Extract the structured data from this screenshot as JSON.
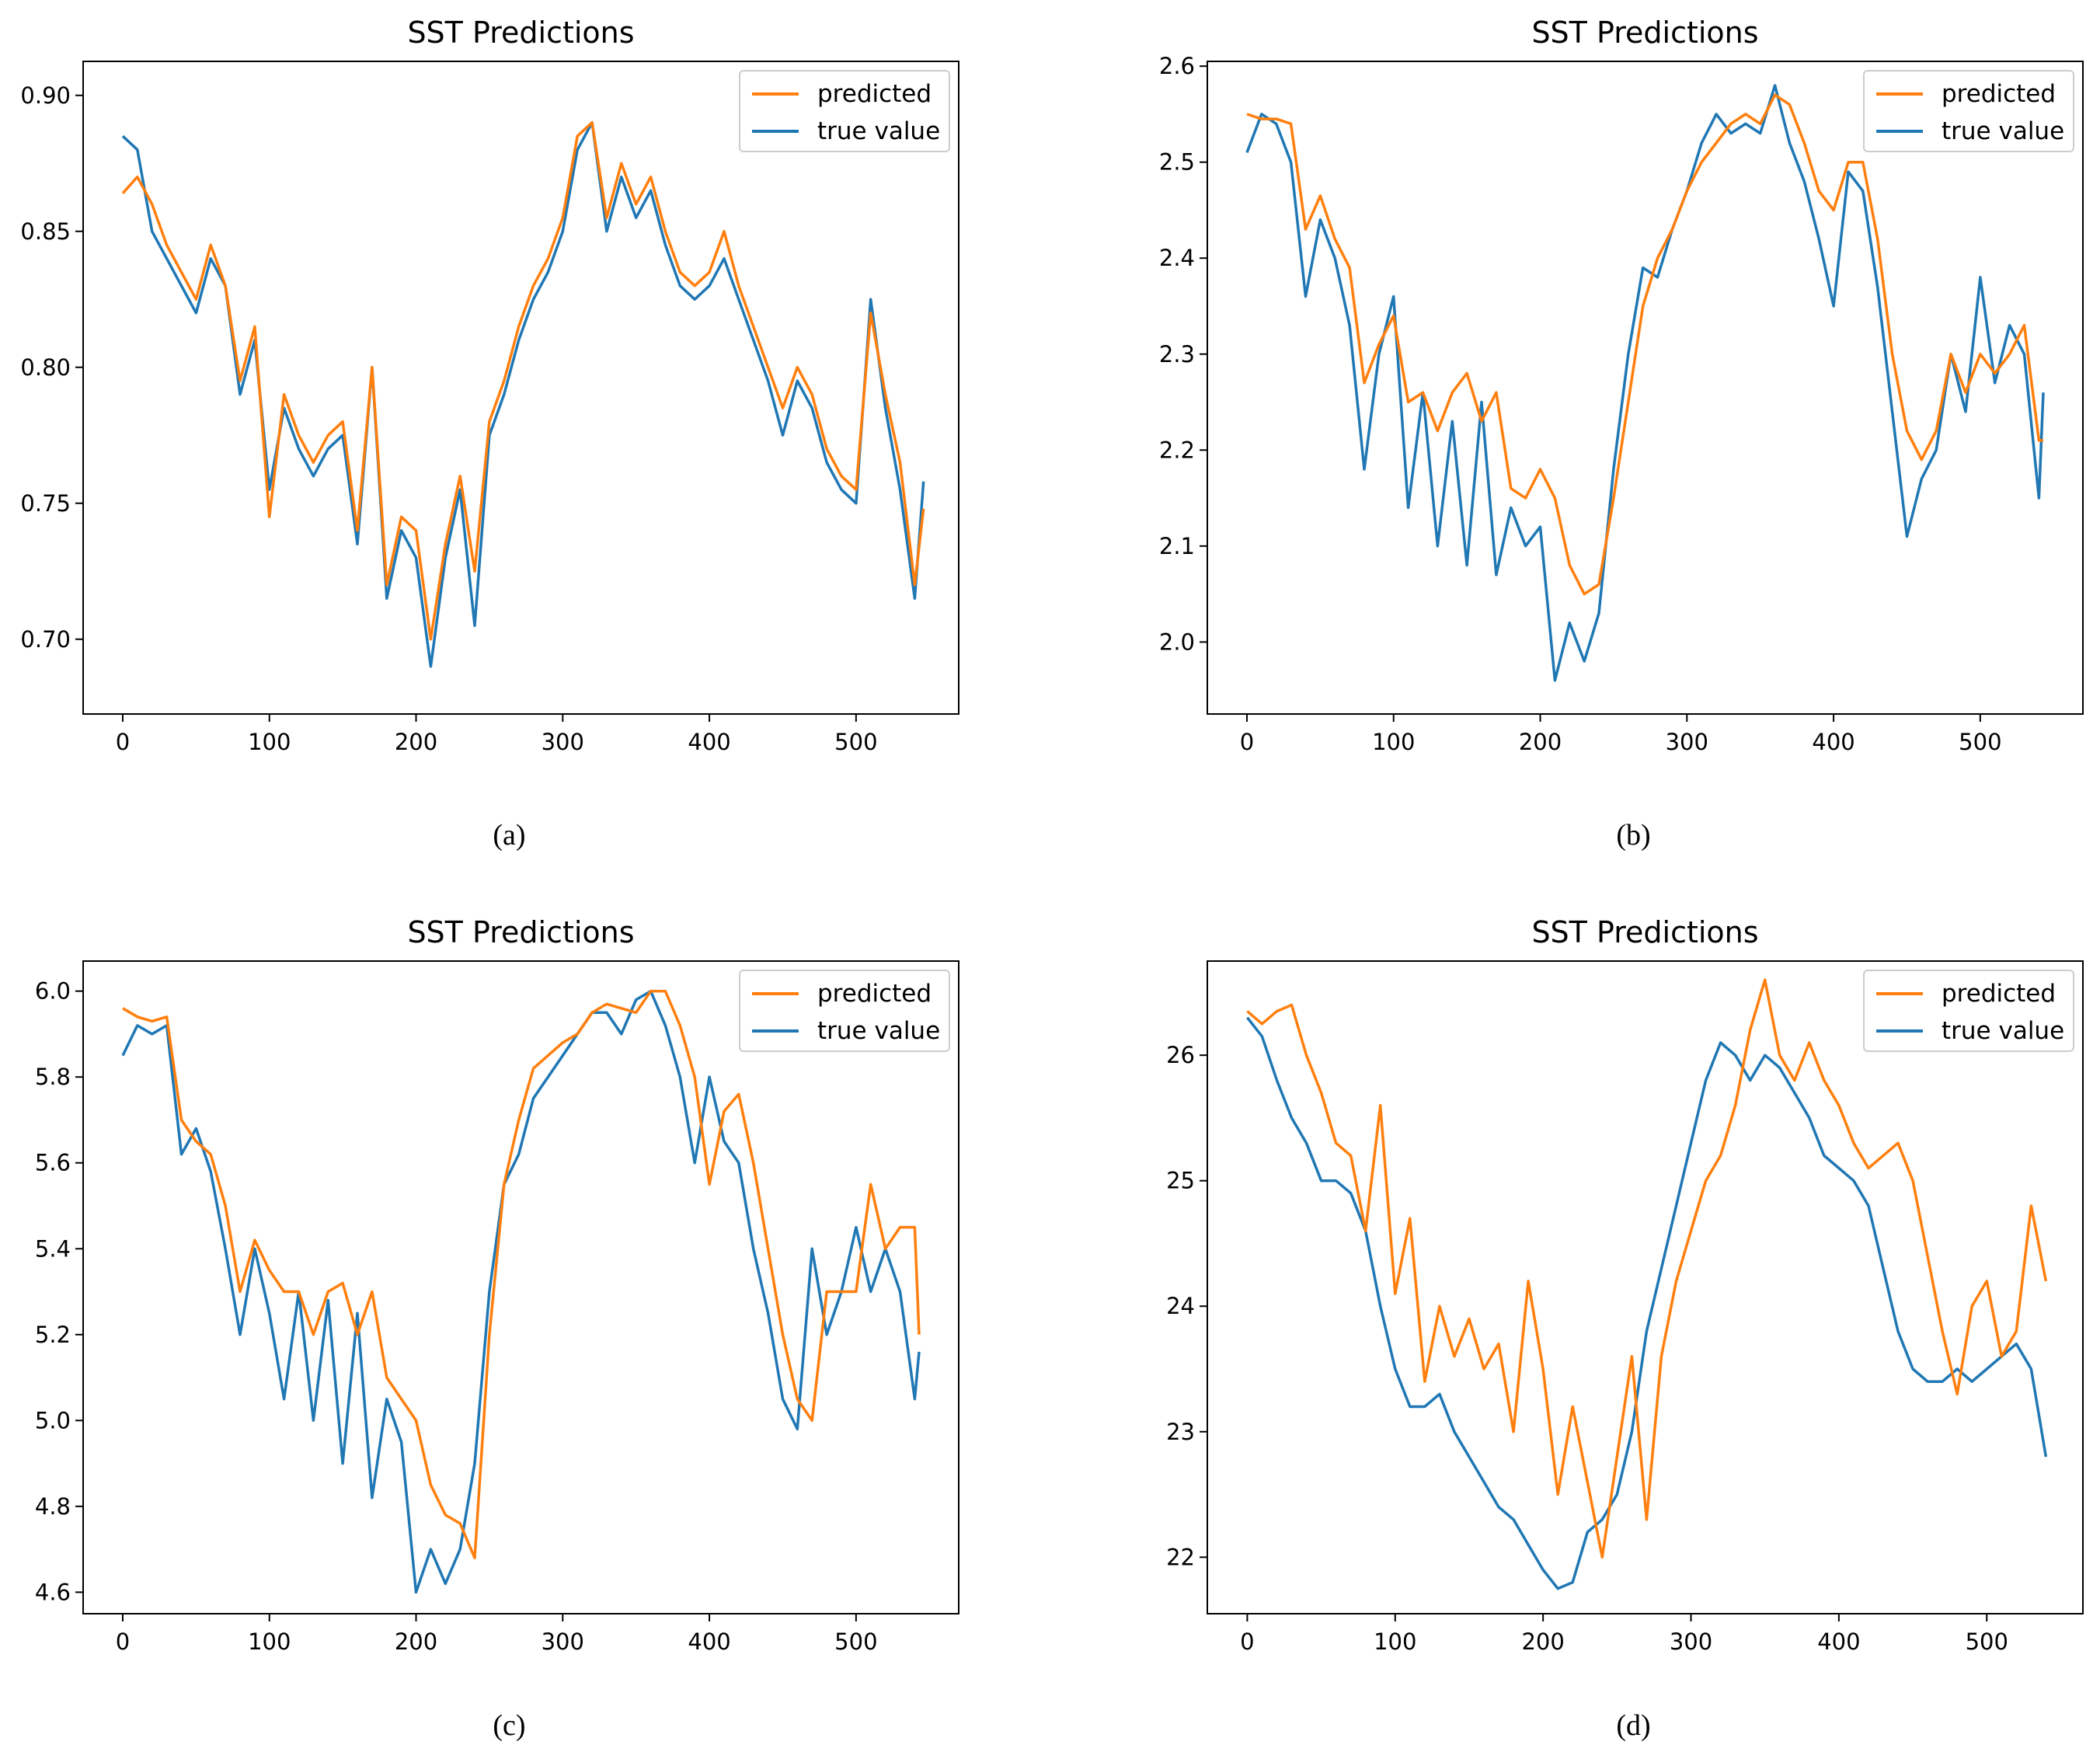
{
  "chart_data": [
    {
      "type": "line",
      "title": "SST Predictions",
      "caption": "(a)",
      "xlabel": "",
      "ylabel": "",
      "xlim": [
        -27,
        570
      ],
      "ylim": [
        0.6725,
        0.9125
      ],
      "xticks": [
        0,
        100,
        200,
        300,
        400,
        500
      ],
      "xtick_labels": [
        "0",
        "100",
        "200",
        "300",
        "400",
        "500"
      ],
      "yticks": [
        0.7,
        0.75,
        0.8,
        0.85,
        0.9
      ],
      "ytick_labels": [
        "0.70",
        "0.75",
        "0.80",
        "0.85",
        "0.90"
      ],
      "legend": [
        "predicted",
        "true value"
      ],
      "legend_loc": "top-right",
      "series": [
        {
          "name": "predicted",
          "color": "#ff7f0e",
          "x": [
            0,
            10,
            20,
            30,
            40,
            50,
            60,
            70,
            80,
            90,
            100,
            110,
            120,
            130,
            140,
            150,
            160,
            170,
            180,
            190,
            200,
            210,
            220,
            230,
            240,
            250,
            260,
            270,
            280,
            290,
            300,
            310,
            320,
            330,
            340,
            350,
            360,
            370,
            380,
            390,
            400,
            410,
            420,
            430,
            440,
            450,
            460,
            470,
            480,
            490,
            500,
            510,
            520,
            530,
            540,
            546
          ],
          "values": [
            0.864,
            0.87,
            0.86,
            0.845,
            0.835,
            0.825,
            0.845,
            0.83,
            0.795,
            0.815,
            0.745,
            0.79,
            0.775,
            0.765,
            0.775,
            0.78,
            0.74,
            0.8,
            0.72,
            0.745,
            0.74,
            0.7,
            0.735,
            0.76,
            0.725,
            0.78,
            0.795,
            0.815,
            0.83,
            0.84,
            0.855,
            0.885,
            0.89,
            0.855,
            0.875,
            0.86,
            0.87,
            0.85,
            0.835,
            0.83,
            0.835,
            0.85,
            0.83,
            0.815,
            0.8,
            0.785,
            0.8,
            0.79,
            0.77,
            0.76,
            0.755,
            0.82,
            0.79,
            0.765,
            0.72,
            0.748
          ]
        },
        {
          "name": "true value",
          "color": "#1f77b4",
          "x": [
            0,
            10,
            20,
            30,
            40,
            50,
            60,
            70,
            80,
            90,
            100,
            110,
            120,
            130,
            140,
            150,
            160,
            170,
            180,
            190,
            200,
            210,
            220,
            230,
            240,
            250,
            260,
            270,
            280,
            290,
            300,
            310,
            320,
            330,
            340,
            350,
            360,
            370,
            380,
            390,
            400,
            410,
            420,
            430,
            440,
            450,
            460,
            470,
            480,
            490,
            500,
            510,
            520,
            530,
            540,
            546
          ],
          "values": [
            0.885,
            0.88,
            0.85,
            0.84,
            0.83,
            0.82,
            0.84,
            0.83,
            0.79,
            0.81,
            0.755,
            0.785,
            0.77,
            0.76,
            0.77,
            0.775,
            0.735,
            0.8,
            0.715,
            0.74,
            0.73,
            0.69,
            0.73,
            0.755,
            0.705,
            0.775,
            0.79,
            0.81,
            0.825,
            0.835,
            0.85,
            0.88,
            0.89,
            0.85,
            0.87,
            0.855,
            0.865,
            0.845,
            0.83,
            0.825,
            0.83,
            0.84,
            0.825,
            0.81,
            0.795,
            0.775,
            0.795,
            0.785,
            0.765,
            0.755,
            0.75,
            0.825,
            0.785,
            0.755,
            0.715,
            0.758
          ]
        }
      ]
    },
    {
      "type": "line",
      "title": "SST Predictions",
      "caption": "(b)",
      "xlabel": "",
      "ylabel": "",
      "xlim": [
        -27,
        570
      ],
      "ylim": [
        1.925,
        2.605
      ],
      "xticks": [
        0,
        100,
        200,
        300,
        400,
        500
      ],
      "xtick_labels": [
        "0",
        "100",
        "200",
        "300",
        "400",
        "500"
      ],
      "yticks": [
        2.0,
        2.1,
        2.2,
        2.3,
        2.4,
        2.5,
        2.6
      ],
      "ytick_labels": [
        "2.0",
        "2.1",
        "2.2",
        "2.3",
        "2.4",
        "2.5",
        "2.6"
      ],
      "legend": [
        "predicted",
        "true value"
      ],
      "legend_loc": "top-right",
      "series": [
        {
          "name": "predicted",
          "color": "#ff7f0e",
          "x": [
            0,
            10,
            20,
            30,
            40,
            50,
            60,
            70,
            80,
            90,
            100,
            110,
            120,
            130,
            140,
            150,
            160,
            170,
            180,
            190,
            200,
            210,
            220,
            230,
            240,
            250,
            260,
            270,
            280,
            290,
            300,
            310,
            320,
            330,
            340,
            350,
            360,
            370,
            380,
            390,
            400,
            410,
            420,
            430,
            440,
            450,
            460,
            470,
            480,
            490,
            500,
            510,
            520,
            530,
            540,
            543
          ],
          "values": [
            2.55,
            2.545,
            2.545,
            2.54,
            2.43,
            2.465,
            2.42,
            2.39,
            2.27,
            2.31,
            2.34,
            2.25,
            2.26,
            2.22,
            2.26,
            2.28,
            2.23,
            2.26,
            2.16,
            2.15,
            2.18,
            2.15,
            2.08,
            2.05,
            2.06,
            2.15,
            2.25,
            2.35,
            2.4,
            2.43,
            2.47,
            2.5,
            2.52,
            2.54,
            2.55,
            2.54,
            2.57,
            2.56,
            2.52,
            2.47,
            2.45,
            2.5,
            2.5,
            2.42,
            2.3,
            2.22,
            2.19,
            2.22,
            2.3,
            2.26,
            2.3,
            2.28,
            2.3,
            2.33,
            2.21,
            2.21
          ]
        },
        {
          "name": "true value",
          "color": "#1f77b4",
          "x": [
            0,
            10,
            20,
            30,
            40,
            50,
            60,
            70,
            80,
            90,
            100,
            110,
            120,
            130,
            140,
            150,
            160,
            170,
            180,
            190,
            200,
            210,
            220,
            230,
            240,
            250,
            260,
            270,
            280,
            290,
            300,
            310,
            320,
            330,
            340,
            350,
            360,
            370,
            380,
            390,
            400,
            410,
            420,
            430,
            440,
            450,
            460,
            470,
            480,
            490,
            500,
            510,
            520,
            530,
            540,
            543
          ],
          "values": [
            2.51,
            2.55,
            2.54,
            2.5,
            2.36,
            2.44,
            2.4,
            2.33,
            2.18,
            2.3,
            2.36,
            2.14,
            2.26,
            2.1,
            2.23,
            2.08,
            2.25,
            2.07,
            2.14,
            2.1,
            2.12,
            1.96,
            2.02,
            1.98,
            2.03,
            2.18,
            2.3,
            2.39,
            2.38,
            2.43,
            2.47,
            2.52,
            2.55,
            2.53,
            2.54,
            2.53,
            2.58,
            2.52,
            2.48,
            2.42,
            2.35,
            2.49,
            2.47,
            2.37,
            2.24,
            2.11,
            2.17,
            2.2,
            2.3,
            2.24,
            2.38,
            2.27,
            2.33,
            2.3,
            2.15,
            2.26
          ]
        }
      ]
    },
    {
      "type": "line",
      "title": "SST Predictions",
      "caption": "(c)",
      "xlabel": "",
      "ylabel": "",
      "xlim": [
        -27,
        570
      ],
      "ylim": [
        4.55,
        6.07
      ],
      "xticks": [
        0,
        100,
        200,
        300,
        400,
        500
      ],
      "xtick_labels": [
        "0",
        "100",
        "200",
        "300",
        "400",
        "500"
      ],
      "yticks": [
        4.6,
        4.8,
        5.0,
        5.2,
        5.4,
        5.6,
        5.8,
        6.0
      ],
      "ytick_labels": [
        "4.6",
        "4.8",
        "5.0",
        "5.2",
        "5.4",
        "5.6",
        "5.8",
        "6.0"
      ],
      "legend": [
        "predicted",
        "true value"
      ],
      "legend_loc": "top-right",
      "series": [
        {
          "name": "predicted",
          "color": "#ff7f0e",
          "x": [
            0,
            10,
            20,
            30,
            40,
            50,
            60,
            70,
            80,
            90,
            100,
            110,
            120,
            130,
            140,
            150,
            160,
            170,
            180,
            190,
            200,
            210,
            220,
            230,
            240,
            250,
            260,
            270,
            280,
            290,
            300,
            310,
            320,
            330,
            340,
            350,
            360,
            370,
            380,
            390,
            400,
            410,
            420,
            430,
            440,
            450,
            460,
            470,
            480,
            490,
            500,
            510,
            520,
            530,
            540,
            543
          ],
          "values": [
            5.96,
            5.94,
            5.93,
            5.94,
            5.7,
            5.65,
            5.62,
            5.5,
            5.3,
            5.42,
            5.35,
            5.3,
            5.3,
            5.2,
            5.3,
            5.32,
            5.2,
            5.3,
            5.1,
            5.05,
            5.0,
            4.85,
            4.78,
            4.76,
            4.68,
            5.2,
            5.55,
            5.7,
            5.82,
            5.85,
            5.88,
            5.9,
            5.95,
            5.97,
            5.96,
            5.95,
            6.0,
            6.0,
            5.92,
            5.8,
            5.55,
            5.72,
            5.76,
            5.6,
            5.4,
            5.2,
            5.05,
            5.0,
            5.3,
            5.3,
            5.3,
            5.55,
            5.4,
            5.45,
            5.45,
            5.2
          ]
        },
        {
          "name": "true value",
          "color": "#1f77b4",
          "x": [
            0,
            10,
            20,
            30,
            40,
            50,
            60,
            70,
            80,
            90,
            100,
            110,
            120,
            130,
            140,
            150,
            160,
            170,
            180,
            190,
            200,
            210,
            220,
            230,
            240,
            250,
            260,
            270,
            280,
            290,
            300,
            310,
            320,
            330,
            340,
            350,
            360,
            370,
            380,
            390,
            400,
            410,
            420,
            430,
            440,
            450,
            460,
            470,
            480,
            490,
            500,
            510,
            520,
            530,
            540,
            543
          ],
          "values": [
            5.85,
            5.92,
            5.9,
            5.92,
            5.62,
            5.68,
            5.58,
            5.4,
            5.2,
            5.4,
            5.25,
            5.05,
            5.3,
            5.0,
            5.28,
            4.9,
            5.25,
            4.82,
            5.05,
            4.95,
            4.6,
            4.7,
            4.62,
            4.7,
            4.9,
            5.3,
            5.55,
            5.62,
            5.75,
            5.8,
            5.85,
            5.9,
            5.95,
            5.95,
            5.9,
            5.98,
            6.0,
            5.92,
            5.8,
            5.6,
            5.8,
            5.65,
            5.6,
            5.4,
            5.25,
            5.05,
            4.98,
            5.4,
            5.2,
            5.3,
            5.45,
            5.3,
            5.4,
            5.3,
            5.05,
            5.16
          ]
        }
      ]
    },
    {
      "type": "line",
      "title": "SST Predictions",
      "caption": "(d)",
      "xlabel": "",
      "ylabel": "",
      "xlim": [
        -27,
        565
      ],
      "ylim": [
        21.55,
        26.75
      ],
      "xticks": [
        0,
        100,
        200,
        300,
        400,
        500
      ],
      "xtick_labels": [
        "0",
        "100",
        "200",
        "300",
        "400",
        "500"
      ],
      "yticks": [
        22,
        23,
        24,
        25,
        26
      ],
      "ytick_labels": [
        "22",
        "23",
        "24",
        "25",
        "26"
      ],
      "legend": [
        "predicted",
        "true value"
      ],
      "legend_loc": "top-right",
      "series": [
        {
          "name": "predicted",
          "color": "#ff7f0e",
          "x": [
            0,
            10,
            20,
            30,
            40,
            50,
            60,
            70,
            80,
            90,
            100,
            110,
            120,
            130,
            140,
            150,
            160,
            170,
            180,
            190,
            200,
            210,
            220,
            230,
            240,
            250,
            260,
            270,
            280,
            290,
            300,
            310,
            320,
            330,
            340,
            350,
            360,
            370,
            380,
            390,
            400,
            410,
            420,
            430,
            440,
            450,
            460,
            470,
            480,
            490,
            500,
            510,
            520,
            530,
            540
          ],
          "values": [
            26.35,
            26.25,
            26.35,
            26.4,
            26.0,
            25.7,
            25.3,
            25.2,
            24.6,
            25.6,
            24.1,
            24.7,
            23.4,
            24.0,
            23.6,
            23.9,
            23.5,
            23.7,
            23.0,
            24.2,
            23.5,
            22.5,
            23.2,
            22.6,
            22.0,
            22.8,
            23.6,
            22.3,
            23.6,
            24.2,
            24.6,
            25.0,
            25.2,
            25.6,
            26.2,
            26.6,
            26.0,
            25.8,
            26.1,
            25.8,
            25.6,
            25.3,
            25.1,
            25.2,
            25.3,
            25.0,
            24.4,
            23.8,
            23.3,
            24.0,
            24.2,
            23.6,
            23.8,
            24.8,
            24.2
          ]
        },
        {
          "name": "true value",
          "color": "#1f77b4",
          "x": [
            0,
            10,
            20,
            30,
            40,
            50,
            60,
            70,
            80,
            90,
            100,
            110,
            120,
            130,
            140,
            150,
            160,
            170,
            180,
            190,
            200,
            210,
            220,
            230,
            240,
            250,
            260,
            270,
            280,
            290,
            300,
            310,
            320,
            330,
            340,
            350,
            360,
            370,
            380,
            390,
            400,
            410,
            420,
            430,
            440,
            450,
            460,
            470,
            480,
            490,
            500,
            510,
            520,
            530,
            540
          ],
          "values": [
            26.3,
            26.15,
            25.8,
            25.5,
            25.3,
            25.0,
            25.0,
            24.9,
            24.6,
            24.0,
            23.5,
            23.2,
            23.2,
            23.3,
            23.0,
            22.8,
            22.6,
            22.4,
            22.3,
            22.1,
            21.9,
            21.75,
            21.8,
            22.2,
            22.3,
            22.5,
            23.0,
            23.8,
            24.3,
            24.8,
            25.3,
            25.8,
            26.1,
            26.0,
            25.8,
            26.0,
            25.9,
            25.7,
            25.5,
            25.2,
            25.1,
            25.0,
            24.8,
            24.3,
            23.8,
            23.5,
            23.4,
            23.4,
            23.5,
            23.4,
            23.5,
            23.6,
            23.7,
            23.5,
            22.8
          ]
        }
      ]
    }
  ]
}
